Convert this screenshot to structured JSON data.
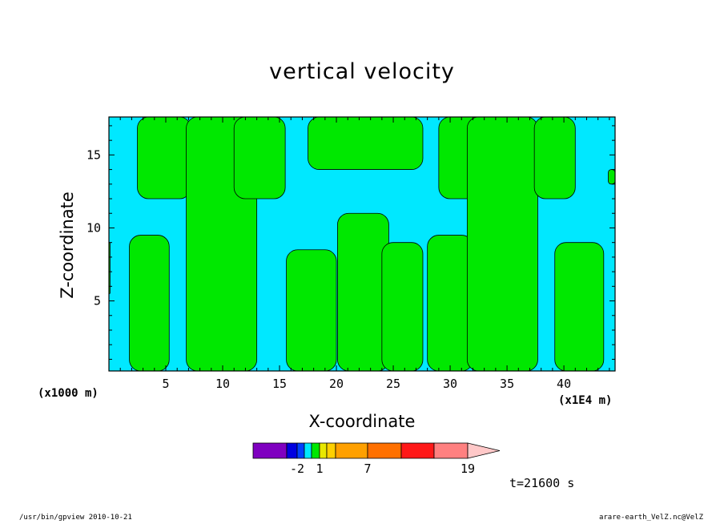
{
  "chart_data": {
    "type": "heatmap",
    "title": "vertical velocity",
    "xlabel": "X-coordinate",
    "ylabel": "Z-coordinate",
    "x_unit_label": "(x1000 m)",
    "x_scale_label": "(x1E4 m)",
    "xlim": [
      0,
      44.5
    ],
    "ylim": [
      0.2,
      17.6
    ],
    "x_ticks": [
      5,
      10,
      15,
      20,
      25,
      30,
      35,
      40
    ],
    "y_ticks": [
      5,
      10,
      15
    ],
    "x_tick_labels": [
      "5",
      "10",
      "15",
      "20",
      "25",
      "30",
      "35",
      "40"
    ],
    "y_tick_labels": [
      "5",
      "10",
      "15"
    ],
    "fill_colors": {
      "background": "#00e8ff",
      "positive": "#00e800"
    },
    "green_bands": [
      {
        "x_start": 0.0,
        "x_end": 0.1,
        "z_start": 5.5,
        "z_end": 9.0
      },
      {
        "x_start": 1.8,
        "x_end": 5.3,
        "z_start": 0.2,
        "z_end": 9.5
      },
      {
        "x_start": 2.5,
        "x_end": 7.2,
        "z_start": 12.0,
        "z_end": 17.6
      },
      {
        "x_start": 6.8,
        "x_end": 13.0,
        "z_start": 0.2,
        "z_end": 17.6
      },
      {
        "x_start": 11.0,
        "x_end": 15.5,
        "z_start": 12.0,
        "z_end": 17.6
      },
      {
        "x_start": 15.6,
        "x_end": 20.0,
        "z_start": 0.2,
        "z_end": 8.5
      },
      {
        "x_start": 17.5,
        "x_end": 27.6,
        "z_start": 14.0,
        "z_end": 17.6
      },
      {
        "x_start": 20.1,
        "x_end": 24.6,
        "z_start": 0.2,
        "z_end": 11.0
      },
      {
        "x_start": 24.0,
        "x_end": 27.6,
        "z_start": 0.2,
        "z_end": 9.0
      },
      {
        "x_start": 28.0,
        "x_end": 32.0,
        "z_start": 0.2,
        "z_end": 9.5
      },
      {
        "x_start": 29.0,
        "x_end": 33.5,
        "z_start": 12.0,
        "z_end": 17.6
      },
      {
        "x_start": 31.5,
        "x_end": 37.7,
        "z_start": 0.2,
        "z_end": 17.6
      },
      {
        "x_start": 37.4,
        "x_end": 41.0,
        "z_start": 12.0,
        "z_end": 17.6
      },
      {
        "x_start": 39.2,
        "x_end": 43.5,
        "z_start": 0.2,
        "z_end": 9.0
      },
      {
        "x_start": 43.9,
        "x_end": 44.5,
        "z_start": 13.0,
        "z_end": 14.0
      }
    ],
    "colorbar": {
      "colors": [
        "#7f00c0",
        "#0000e0",
        "#0040ff",
        "#00e8ff",
        "#00e800",
        "#e8e800",
        "#ffd000",
        "#ffa000",
        "#ff7000",
        "#ff1818",
        "#ff8080",
        "#ffc8c8"
      ],
      "labels": [
        "-2",
        "1",
        "7",
        "19"
      ]
    }
  },
  "annotations": {
    "time": "t=21600 s",
    "footer_left": "/usr/bin/gpview  2010-10-21",
    "footer_right": "arare-earth_VelZ.nc@VelZ"
  }
}
